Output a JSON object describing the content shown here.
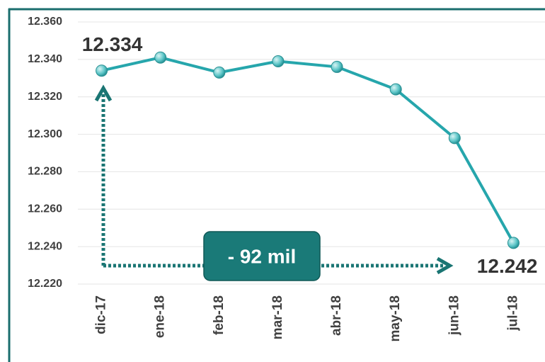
{
  "chart_data": {
    "type": "line",
    "categories": [
      "dic-17",
      "ene-18",
      "feb-18",
      "mar-18",
      "abr-18",
      "may-18",
      "jun-18",
      "jul-18"
    ],
    "values": [
      12334,
      12341,
      12333,
      12339,
      12336,
      12324,
      12298,
      12242
    ],
    "value_labels": [
      "12.334",
      null,
      null,
      null,
      null,
      null,
      null,
      "12.242"
    ],
    "color": "#26a6ac",
    "ylim": [
      12220,
      12360
    ],
    "yticks": [
      {
        "value": 12220,
        "label": "12.220"
      },
      {
        "value": 12240,
        "label": "12.240"
      },
      {
        "value": 12260,
        "label": "12.260"
      },
      {
        "value": 12280,
        "label": "12.280"
      },
      {
        "value": 12300,
        "label": "12.300"
      },
      {
        "value": 12320,
        "label": "12.320"
      },
      {
        "value": 12340,
        "label": "12.340"
      },
      {
        "value": 12360,
        "label": "12.360"
      }
    ],
    "grid": true,
    "annotation": "- 92 mil"
  }
}
